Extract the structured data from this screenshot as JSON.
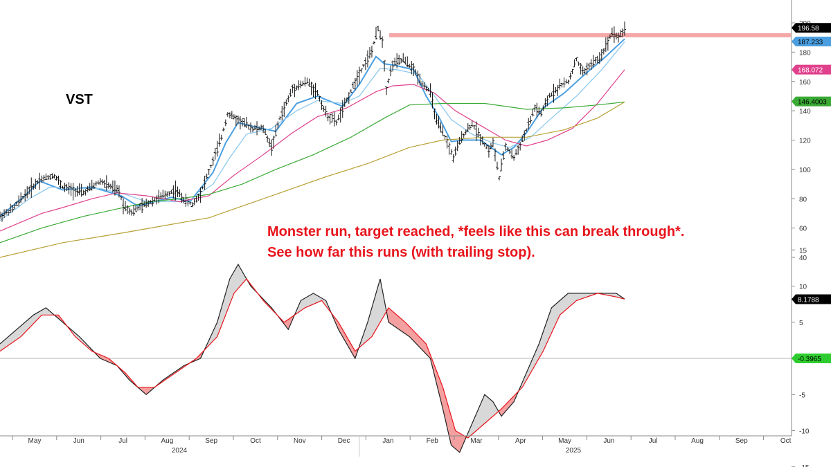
{
  "chart_data": [
    {
      "type": "ohlc",
      "title": "VST",
      "annotations": [
        "Monster run, target reached, *feels like this can break through*.",
        "See how far this runs (with trailing stop)."
      ],
      "ylim": [
        30,
        202
      ],
      "y_ticks": [
        40,
        60,
        80,
        100,
        120,
        140,
        160,
        180,
        200
      ],
      "x_months": [
        "May",
        "Jun",
        "Jul",
        "Aug",
        "Sep",
        "Oct",
        "Nov",
        "Dec",
        "Jan",
        "Feb",
        "Mar",
        "Apr",
        "May",
        "Jun",
        "Jul",
        "Aug",
        "Sep",
        "Oct"
      ],
      "x_years": [
        "2024",
        "2025"
      ],
      "resistance_level": 191,
      "price_path": [
        [
          0,
          68
        ],
        [
          6,
          73
        ],
        [
          14,
          86
        ],
        [
          19,
          93
        ],
        [
          26,
          96
        ],
        [
          30,
          88
        ],
        [
          40,
          84
        ],
        [
          48,
          92
        ],
        [
          57,
          85
        ],
        [
          59,
          76
        ],
        [
          63,
          71
        ],
        [
          72,
          78
        ],
        [
          78,
          82
        ],
        [
          84,
          86
        ],
        [
          89,
          78
        ],
        [
          92,
          76
        ],
        [
          96,
          84
        ],
        [
          101,
          102
        ],
        [
          106,
          122
        ],
        [
          109,
          138
        ],
        [
          116,
          132
        ],
        [
          121,
          128
        ],
        [
          126,
          128
        ],
        [
          130,
          115
        ],
        [
          134,
          135
        ],
        [
          140,
          155
        ],
        [
          147,
          160
        ],
        [
          152,
          152
        ],
        [
          156,
          138
        ],
        [
          161,
          132
        ],
        [
          165,
          144
        ],
        [
          171,
          163
        ],
        [
          178,
          181
        ],
        [
          181,
          196
        ],
        [
          183,
          188
        ],
        [
          185,
          155
        ],
        [
          188,
          172
        ],
        [
          193,
          175
        ],
        [
          198,
          168
        ],
        [
          203,
          157
        ],
        [
          206,
          153
        ],
        [
          209,
          133
        ],
        [
          213,
          122
        ],
        [
          217,
          108
        ],
        [
          221,
          122
        ],
        [
          226,
          131
        ],
        [
          230,
          122
        ],
        [
          234,
          113
        ],
        [
          236,
          118
        ],
        [
          239,
          94
        ],
        [
          242,
          116
        ],
        [
          246,
          108
        ],
        [
          249,
          117
        ],
        [
          253,
          130
        ],
        [
          256,
          142
        ],
        [
          259,
          138
        ],
        [
          263,
          150
        ],
        [
          269,
          158
        ],
        [
          272,
          160
        ],
        [
          276,
          175
        ],
        [
          279,
          166
        ],
        [
          283,
          172
        ],
        [
          287,
          176
        ],
        [
          290,
          184
        ],
        [
          293,
          194
        ],
        [
          296,
          190
        ],
        [
          299,
          196
        ]
      ],
      "series": [
        {
          "name": "",
          "color": "#4b9fe1",
          "values": [
            [
              0,
              68
            ],
            [
              12,
              82
            ],
            [
              19,
              92
            ],
            [
              30,
              86
            ],
            [
              44,
              88
            ],
            [
              58,
              82
            ],
            [
              66,
              75
            ],
            [
              82,
              81
            ],
            [
              91,
              78
            ],
            [
              102,
              98
            ],
            [
              108,
              118
            ],
            [
              114,
              132
            ],
            [
              122,
              129
            ],
            [
              132,
              126
            ],
            [
              142,
              145
            ],
            [
              152,
              150
            ],
            [
              164,
              143
            ],
            [
              172,
              158
            ],
            [
              180,
              177
            ],
            [
              184,
              172
            ],
            [
              189,
              171
            ],
            [
              198,
              168
            ],
            [
              204,
              150
            ],
            [
              210,
              136
            ],
            [
              216,
              119
            ],
            [
              222,
              120
            ],
            [
              230,
              120
            ],
            [
              235,
              115
            ],
            [
              240,
              110
            ],
            [
              246,
              115
            ],
            [
              252,
              125
            ],
            [
              260,
              142
            ],
            [
              270,
              152
            ],
            [
              280,
              165
            ],
            [
              290,
              177
            ],
            [
              299,
              189
            ]
          ]
        },
        {
          "name": "",
          "color": "#8ec9ef",
          "values": [
            [
              0,
              65
            ],
            [
              14,
              80
            ],
            [
              24,
              88
            ],
            [
              34,
              87
            ],
            [
              48,
              87
            ],
            [
              60,
              83
            ],
            [
              70,
              78
            ],
            [
              90,
              78
            ],
            [
              102,
              90
            ],
            [
              110,
              108
            ],
            [
              118,
              124
            ],
            [
              130,
              128
            ],
            [
              142,
              140
            ],
            [
              152,
              147
            ],
            [
              164,
              145
            ],
            [
              172,
              150
            ],
            [
              182,
              169
            ],
            [
              190,
              168
            ],
            [
              200,
              165
            ],
            [
              208,
              150
            ],
            [
              216,
              134
            ],
            [
              226,
              124
            ],
            [
              236,
              118
            ],
            [
              244,
              115
            ],
            [
              254,
              122
            ],
            [
              264,
              135
            ],
            [
              276,
              150
            ],
            [
              288,
              168
            ],
            [
              299,
              187
            ]
          ]
        },
        {
          "name": "",
          "color": "#e0408c",
          "values": [
            [
              0,
              58
            ],
            [
              20,
              70
            ],
            [
              30,
              74
            ],
            [
              44,
              80
            ],
            [
              56,
              84
            ],
            [
              70,
              82
            ],
            [
              86,
              78
            ],
            [
              100,
              82
            ],
            [
              112,
              96
            ],
            [
              126,
              110
            ],
            [
              140,
              125
            ],
            [
              152,
              136
            ],
            [
              166,
              142
            ],
            [
              180,
              153
            ],
            [
              188,
              157
            ],
            [
              198,
              158
            ],
            [
              208,
              152
            ],
            [
              218,
              140
            ],
            [
              230,
              130
            ],
            [
              242,
              120
            ],
            [
              252,
              116
            ],
            [
              262,
              120
            ],
            [
              274,
              128
            ],
            [
              286,
              145
            ],
            [
              299,
              168
            ]
          ]
        },
        {
          "name": "",
          "color": "#3aaa35",
          "values": [
            [
              0,
              50
            ],
            [
              20,
              60
            ],
            [
              40,
              68
            ],
            [
              56,
              73
            ],
            [
              72,
              78
            ],
            [
              86,
              80
            ],
            [
              100,
              83
            ],
            [
              116,
              90
            ],
            [
              132,
              100
            ],
            [
              150,
              110
            ],
            [
              168,
              122
            ],
            [
              184,
              135
            ],
            [
              196,
              144
            ],
            [
              212,
              145
            ],
            [
              232,
              145
            ],
            [
              252,
              141
            ],
            [
              270,
              142
            ],
            [
              286,
              144
            ],
            [
              299,
              146
            ]
          ]
        },
        {
          "name": "",
          "color": "#b8a035",
          "values": [
            [
              0,
              40
            ],
            [
              30,
              50
            ],
            [
              60,
              57
            ],
            [
              80,
              62
            ],
            [
              100,
              67
            ],
            [
              118,
              76
            ],
            [
              136,
              85
            ],
            [
              156,
              95
            ],
            [
              176,
              104
            ],
            [
              196,
              115
            ],
            [
              212,
              120
            ],
            [
              232,
              122
            ],
            [
              252,
              122
            ],
            [
              270,
              127
            ],
            [
              286,
              135
            ],
            [
              299,
              146
            ]
          ]
        }
      ],
      "price_tags": [
        {
          "value": "196.58",
          "y": 196.58,
          "bg": "#000000",
          "fg": "#ffffff"
        },
        {
          "value": "187.233",
          "y": 187.233,
          "bg": "#4b9fe1",
          "fg": "#000000"
        },
        {
          "value": "168.072",
          "y": 168.072,
          "bg": "#e0408c",
          "fg": "#ffffff"
        },
        {
          "value": "146.4003",
          "y": 146.4003,
          "bg": "#3aaa35",
          "fg": "#000000"
        }
      ]
    },
    {
      "type": "line",
      "title": "",
      "ylim": [
        -15.5,
        15.5
      ],
      "y_ticks": [
        -15,
        -10,
        -5,
        5,
        10,
        15
      ],
      "y_tick_labels": [
        "-15",
        "-10",
        "-5",
        "5",
        "10",
        "15"
      ],
      "series": [
        {
          "name": "",
          "color": "#222222",
          "values": [
            [
              0,
              2
            ],
            [
              8,
              4
            ],
            [
              16,
              6
            ],
            [
              22,
              7
            ],
            [
              30,
              5
            ],
            [
              38,
              3
            ],
            [
              48,
              0
            ],
            [
              56,
              -1
            ],
            [
              62,
              -3
            ],
            [
              70,
              -5
            ],
            [
              78,
              -3
            ],
            [
              88,
              -1
            ],
            [
              96,
              0
            ],
            [
              104,
              5
            ],
            [
              110,
              11
            ],
            [
              114,
              13
            ],
            [
              120,
              10
            ],
            [
              130,
              7
            ],
            [
              138,
              4
            ],
            [
              144,
              8
            ],
            [
              150,
              9
            ],
            [
              156,
              8
            ],
            [
              162,
              4
            ],
            [
              170,
              0
            ],
            [
              176,
              5
            ],
            [
              182,
              11
            ],
            [
              186,
              5
            ],
            [
              196,
              3
            ],
            [
              206,
              0
            ],
            [
              212,
              -7
            ],
            [
              216,
              -12
            ],
            [
              220,
              -13
            ],
            [
              226,
              -9
            ],
            [
              232,
              -5
            ],
            [
              236,
              -6
            ],
            [
              240,
              -8
            ],
            [
              246,
              -6
            ],
            [
              252,
              -2
            ],
            [
              258,
              2
            ],
            [
              264,
              7
            ],
            [
              272,
              9
            ],
            [
              280,
              9
            ],
            [
              288,
              9
            ],
            [
              295,
              9
            ],
            [
              299,
              8.2
            ]
          ]
        },
        {
          "name": "",
          "color": "#e8141c",
          "values": [
            [
              0,
              1
            ],
            [
              10,
              3
            ],
            [
              20,
              6
            ],
            [
              28,
              6
            ],
            [
              36,
              3
            ],
            [
              44,
              1
            ],
            [
              52,
              0
            ],
            [
              60,
              -2
            ],
            [
              66,
              -4
            ],
            [
              74,
              -4
            ],
            [
              84,
              -2
            ],
            [
              94,
              0
            ],
            [
              104,
              3
            ],
            [
              112,
              9
            ],
            [
              118,
              11
            ],
            [
              126,
              8
            ],
            [
              136,
              5
            ],
            [
              146,
              7
            ],
            [
              154,
              8
            ],
            [
              162,
              5
            ],
            [
              170,
              1
            ],
            [
              178,
              3
            ],
            [
              186,
              7
            ],
            [
              194,
              5
            ],
            [
              204,
              2
            ],
            [
              212,
              -4
            ],
            [
              218,
              -10
            ],
            [
              224,
              -11
            ],
            [
              232,
              -9
            ],
            [
              240,
              -7
            ],
            [
              250,
              -4
            ],
            [
              260,
              1
            ],
            [
              268,
              6
            ],
            [
              276,
              8
            ],
            [
              286,
              9
            ],
            [
              295,
              8.5
            ],
            [
              299,
              8.2
            ]
          ]
        }
      ],
      "tags": [
        {
          "value": "8.1788",
          "y": 8.1788,
          "bg": "#000000",
          "fg": "#ffffff"
        },
        {
          "value": "-0.3965",
          "y": 0,
          "bg": "#2ecc2e",
          "fg": "#000000"
        }
      ]
    }
  ]
}
